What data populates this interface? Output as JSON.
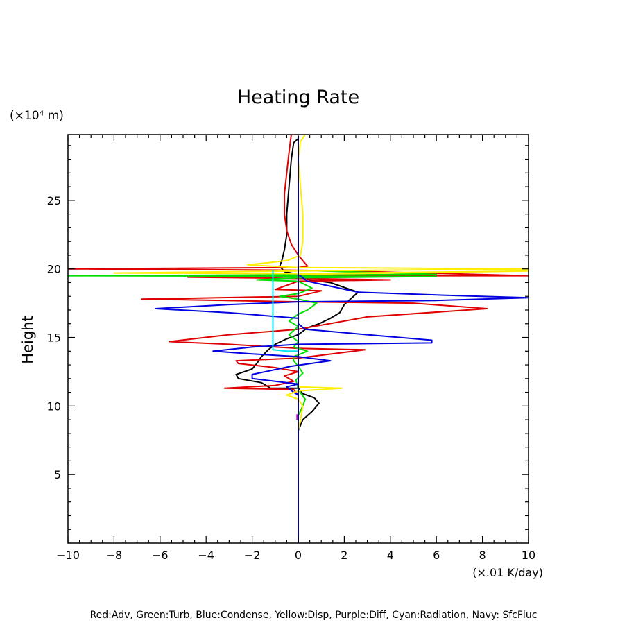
{
  "chart_data": {
    "type": "line",
    "title": "Heating Rate",
    "xlabel": "(×.01 K/day)",
    "ylabel": "Height",
    "y_unit": "(×10⁴ m)",
    "xlim": [
      -10,
      10
    ],
    "ylim": [
      0,
      29.8
    ],
    "xticks": [
      -10,
      -8,
      -6,
      -4,
      -2,
      0,
      2,
      4,
      6,
      8,
      10
    ],
    "xtick_labels": [
      "−10",
      "−8",
      "−6",
      "−4",
      "−2",
      "0",
      "2",
      "4",
      "6",
      "8",
      "10"
    ],
    "yticks": [
      5,
      10,
      15,
      20,
      25
    ],
    "ytick_labels": [
      "5",
      "10",
      "15",
      "20",
      "25"
    ],
    "grid": false,
    "legend": "Red:Adv, Green:Turb, Blue:Condense, Yellow:Disp, Purple:Diff, Cyan:Radiation, Navy: SfcFluc",
    "series": [
      {
        "color": "#000000",
        "points": [
          [
            0,
            6.7
          ],
          [
            0,
            8.2
          ],
          [
            0.2,
            9.0
          ],
          [
            0.6,
            9.6
          ],
          [
            0.9,
            10.2
          ],
          [
            0.7,
            10.6
          ],
          [
            0.2,
            10.9
          ],
          [
            0,
            11.3
          ],
          [
            -1.2,
            11.3
          ],
          [
            -1.6,
            11.7
          ],
          [
            -2.6,
            12.0
          ],
          [
            -2.7,
            12.3
          ],
          [
            -2.0,
            12.7
          ],
          [
            -1.8,
            13.1
          ],
          [
            -1.6,
            13.6
          ],
          [
            -1.3,
            14.1
          ],
          [
            -1.0,
            14.5
          ],
          [
            -0.5,
            14.9
          ],
          [
            0,
            15.2
          ],
          [
            0.4,
            15.7
          ],
          [
            0.9,
            16.0
          ],
          [
            1.4,
            16.4
          ],
          [
            1.8,
            16.8
          ],
          [
            2.0,
            17.4
          ],
          [
            2.6,
            18.3
          ],
          [
            1.4,
            19.0
          ],
          [
            0.5,
            19.2
          ],
          [
            0,
            19.6
          ],
          [
            -0.6,
            19.8
          ],
          [
            -0.8,
            20.2
          ],
          [
            -0.7,
            20.7
          ],
          [
            -0.6,
            21.4
          ],
          [
            -0.5,
            22.5
          ],
          [
            -0.5,
            24.0
          ],
          [
            -0.4,
            26.0
          ],
          [
            -0.3,
            28.0
          ],
          [
            -0.2,
            29.2
          ],
          [
            0,
            29.5
          ]
        ]
      },
      {
        "color": "#e00000",
        "points": [
          [
            0,
            29.8
          ],
          [
            -0.3,
            29.8
          ],
          [
            -0.4,
            28.5
          ],
          [
            -0.5,
            27.0
          ],
          [
            -0.6,
            25.5
          ],
          [
            -0.6,
            24.0
          ],
          [
            -0.5,
            22.8
          ],
          [
            -0.3,
            21.8
          ],
          [
            0,
            21.0
          ],
          [
            0.3,
            20.4
          ],
          [
            0.4,
            20.2
          ],
          [
            0,
            20.1
          ],
          [
            -10,
            20.0
          ],
          [
            0,
            19.9
          ],
          [
            2.0,
            19.85
          ],
          [
            10,
            19.5
          ],
          [
            0,
            19.5
          ],
          [
            -4.8,
            19.4
          ],
          [
            0,
            19.3
          ],
          [
            4.0,
            19.2
          ],
          [
            0,
            19.1
          ],
          [
            -1.0,
            18.5
          ],
          [
            1.0,
            18.4
          ],
          [
            0,
            18.0
          ],
          [
            -6.8,
            17.8
          ],
          [
            0,
            17.6
          ],
          [
            5.0,
            17.5
          ],
          [
            8.2,
            17.1
          ],
          [
            3.0,
            16.5
          ],
          [
            0,
            15.6
          ],
          [
            -3.0,
            15.2
          ],
          [
            -5.6,
            14.7
          ],
          [
            -3.0,
            14.5
          ],
          [
            0,
            14.2
          ],
          [
            2.9,
            14.1
          ],
          [
            0,
            13.5
          ],
          [
            -2.7,
            13.3
          ],
          [
            -2.6,
            13.1
          ],
          [
            -1.0,
            12.8
          ],
          [
            0,
            12.5
          ],
          [
            -0.6,
            12.2
          ],
          [
            -0.2,
            11.8
          ],
          [
            -1.0,
            11.5
          ],
          [
            -3.2,
            11.3
          ],
          [
            -0.2,
            11.2
          ],
          [
            0,
            10.8
          ],
          [
            0,
            9.5
          ]
        ]
      },
      {
        "color": "#00dd00",
        "points": [
          [
            0,
            19.9
          ],
          [
            6.0,
            19.6
          ],
          [
            -10,
            19.5
          ],
          [
            6.0,
            19.45
          ],
          [
            0,
            19.35
          ],
          [
            -1.8,
            19.2
          ],
          [
            0,
            19.1
          ],
          [
            0.6,
            18.6
          ],
          [
            0,
            18.2
          ],
          [
            -0.8,
            18.0
          ],
          [
            0,
            17.8
          ],
          [
            0.8,
            17.5
          ],
          [
            0.4,
            17.0
          ],
          [
            0,
            16.7
          ],
          [
            -0.4,
            16.2
          ],
          [
            0,
            15.8
          ],
          [
            -0.4,
            15.2
          ],
          [
            0,
            14.7
          ],
          [
            -0.2,
            14.3
          ],
          [
            0.4,
            14.0
          ],
          [
            -0.2,
            13.6
          ],
          [
            -0.2,
            13.3
          ],
          [
            0,
            12.9
          ],
          [
            0.2,
            12.4
          ],
          [
            -0.1,
            11.9
          ],
          [
            0,
            11.2
          ],
          [
            0.3,
            10.5
          ],
          [
            0.2,
            10.0
          ],
          [
            0,
            9.3
          ]
        ]
      },
      {
        "color": "#0000e0",
        "points": [
          [
            0,
            19.9
          ],
          [
            0,
            19.6
          ],
          [
            0.4,
            19.1
          ],
          [
            1.5,
            18.7
          ],
          [
            2.6,
            18.3
          ],
          [
            6.0,
            18.1
          ],
          [
            10,
            17.9
          ],
          [
            6.0,
            17.7
          ],
          [
            0,
            17.6
          ],
          [
            -3.0,
            17.4
          ],
          [
            -6.2,
            17.1
          ],
          [
            -3.0,
            16.8
          ],
          [
            0,
            16.4
          ],
          [
            0,
            16.0
          ],
          [
            0.3,
            15.6
          ],
          [
            3.0,
            15.2
          ],
          [
            5.8,
            14.8
          ],
          [
            5.8,
            14.6
          ],
          [
            0,
            14.5
          ],
          [
            -2.0,
            14.3
          ],
          [
            -3.7,
            14.0
          ],
          [
            -2.0,
            13.8
          ],
          [
            0,
            13.6
          ],
          [
            1.4,
            13.3
          ],
          [
            -0.3,
            12.9
          ],
          [
            -2.0,
            12.3
          ],
          [
            -2.0,
            12.0
          ],
          [
            -1.0,
            11.8
          ],
          [
            0,
            11.6
          ],
          [
            -0.5,
            11.4
          ],
          [
            -0.2,
            11.0
          ],
          [
            0,
            10.8
          ],
          [
            0,
            10.0
          ]
        ]
      },
      {
        "color": "#ffee00",
        "points": [
          [
            0.3,
            29.8
          ],
          [
            0.1,
            29.3
          ],
          [
            0,
            28.0
          ],
          [
            0.1,
            26.0
          ],
          [
            0.2,
            24.0
          ],
          [
            0.2,
            22.0
          ],
          [
            0.1,
            21.0
          ],
          [
            -0.5,
            20.6
          ],
          [
            -1.6,
            20.4
          ],
          [
            -2.2,
            20.3
          ],
          [
            0,
            20.1
          ],
          [
            10,
            20.0
          ],
          [
            0,
            19.85
          ],
          [
            -8.0,
            19.7
          ],
          [
            0,
            19.65
          ],
          [
            10,
            19.85
          ],
          [
            0,
            19.6
          ],
          [
            0,
            18.5
          ],
          [
            0,
            15.0
          ],
          [
            0,
            12.0
          ],
          [
            0,
            11.4
          ],
          [
            1.9,
            11.3
          ],
          [
            0,
            11.1
          ],
          [
            -0.5,
            10.8
          ],
          [
            0,
            10.5
          ],
          [
            0.2,
            10.0
          ],
          [
            0.1,
            9.0
          ],
          [
            0,
            8.2
          ],
          [
            0,
            7.2
          ]
        ]
      },
      {
        "color": "#00e5ee",
        "points": [
          [
            -1.1,
            19.9
          ],
          [
            -1.1,
            18.0
          ],
          [
            -1.1,
            15.0
          ],
          [
            -1.1,
            14.1
          ],
          [
            -0.5,
            14.0
          ],
          [
            0,
            14.0
          ]
        ]
      },
      {
        "color": "#000080",
        "points": [
          [
            0,
            0
          ],
          [
            0,
            29.7
          ]
        ]
      },
      {
        "color": "#aa00cc",
        "points": [
          [
            -0.05,
            9.0
          ],
          [
            -0.05,
            9.4
          ]
        ]
      }
    ]
  }
}
